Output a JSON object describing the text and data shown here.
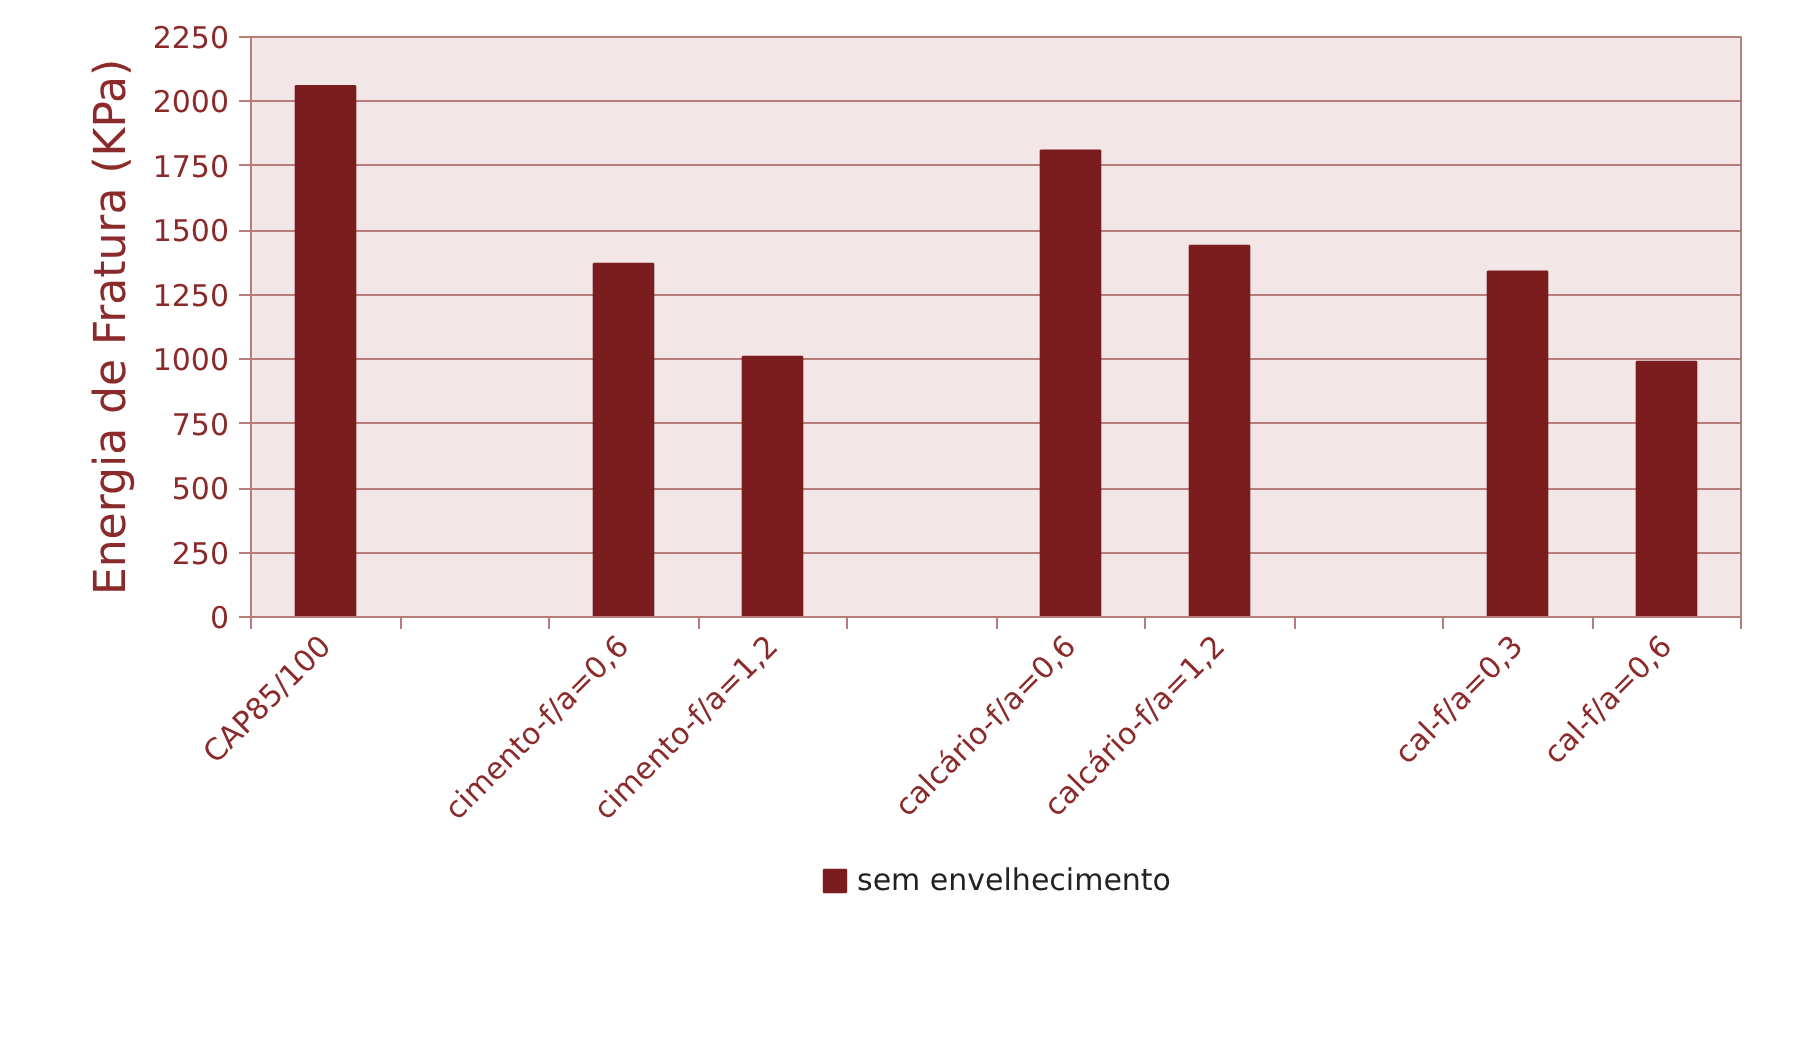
{
  "chart_data": {
    "type": "bar",
    "ylabel": "Energia de Fratura (KPa)",
    "categories": [
      "CAP85/100",
      null,
      "cimento-f/a=0,6",
      "cimento-f/a=1,2",
      null,
      "calcário-f/a=0,6",
      "calcário-f/a=1,2",
      null,
      "cal-f/a=0,3",
      "cal-f/a=0,6"
    ],
    "series": [
      {
        "name": "sem envelhecimento",
        "color": "#7b1c1e",
        "values": [
          2060,
          null,
          1370,
          1010,
          null,
          1810,
          1440,
          null,
          1340,
          990
        ]
      }
    ],
    "ylim": [
      0,
      2250
    ],
    "yticks": [
      0,
      250,
      500,
      750,
      1000,
      1250,
      1500,
      1750,
      2000,
      2250
    ],
    "grid": "y",
    "legend": "bottom"
  }
}
